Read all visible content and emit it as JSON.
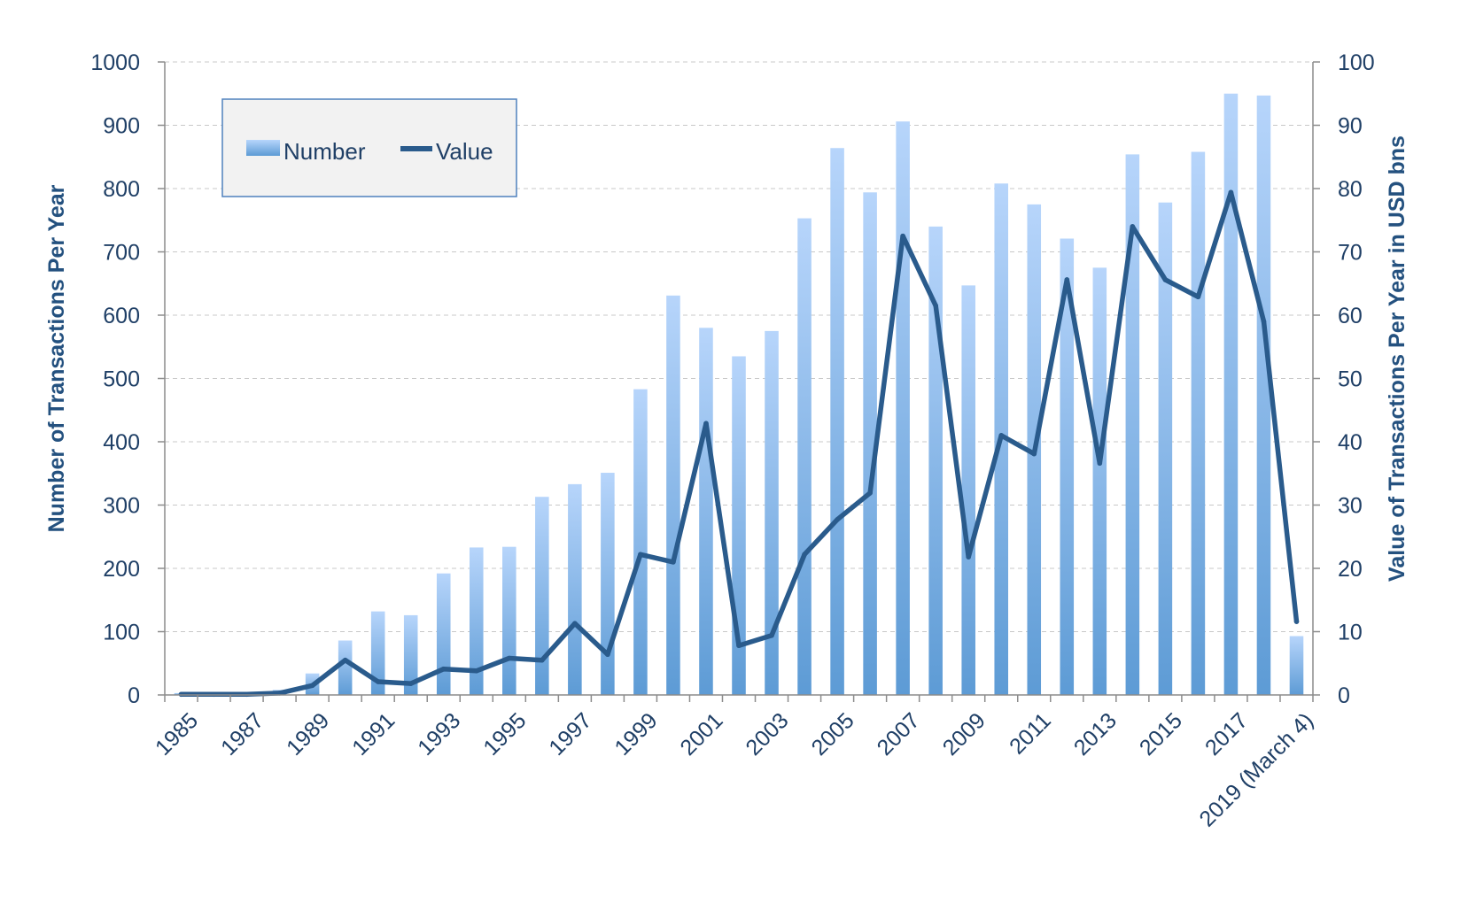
{
  "chart_data": {
    "type": "bar",
    "categories": [
      "1985",
      "1986",
      "1987",
      "1988",
      "1989",
      "1990",
      "1991",
      "1992",
      "1993",
      "1994",
      "1995",
      "1996",
      "1997",
      "1998",
      "1999",
      "2000",
      "2001",
      "2002",
      "2003",
      "2004",
      "2005",
      "2006",
      "2007",
      "2008",
      "2009",
      "2010",
      "2011",
      "2012",
      "2013",
      "2014",
      "2015",
      "2016",
      "2017",
      "2018",
      "2019 (March 4)"
    ],
    "x_tick_labels": [
      "1985",
      "1987",
      "1989",
      "1991",
      "1993",
      "1995",
      "1997",
      "1999",
      "2001",
      "2003",
      "2005",
      "2007",
      "2009",
      "2011",
      "2013",
      "2015",
      "2017",
      "2019 (March 4)"
    ],
    "series": [
      {
        "name": "Number",
        "kind": "bar",
        "axis": "left",
        "values": [
          3,
          2,
          4,
          8,
          34,
          86,
          132,
          126,
          192,
          233,
          234,
          313,
          333,
          351,
          483,
          631,
          580,
          535,
          575,
          753,
          864,
          794,
          906,
          740,
          647,
          808,
          775,
          721,
          675,
          854,
          778,
          858,
          950,
          947,
          93
        ]
      },
      {
        "name": "Value",
        "kind": "line",
        "axis": "right",
        "values": [
          0.1,
          0.1,
          0.1,
          0.3,
          1.5,
          5.5,
          2.1,
          1.8,
          4.1,
          3.8,
          5.8,
          5.5,
          11.3,
          6.4,
          22.2,
          21.0,
          42.9,
          7.8,
          9.4,
          22.2,
          27.7,
          31.9,
          72.5,
          61.5,
          21.8,
          41.0,
          38.1,
          65.6,
          36.6,
          74.0,
          65.6,
          62.9,
          79.4,
          59.0,
          11.6
        ]
      }
    ],
    "ylabel": "Number of Transactions Per Year",
    "y2label": "Value of Transactions Per Year in USD bns",
    "ylim": [
      0,
      1000
    ],
    "y2lim": [
      0,
      100
    ],
    "y_ticks": [
      "0",
      "100",
      "200",
      "300",
      "400",
      "500",
      "600",
      "700",
      "800",
      "900",
      "1000"
    ],
    "y2_ticks": [
      "0",
      "10",
      "20",
      "30",
      "40",
      "50",
      "60",
      "70",
      "80",
      "90",
      "100"
    ],
    "grid": true,
    "legend": {
      "placement": "top-left",
      "entries": [
        "Number",
        "Value"
      ]
    },
    "colors": {
      "bar_top": "#b7d5fb",
      "bar_bottom": "#5d9bd5",
      "line": "#2a5b8c",
      "axis_text": "#1f3f66",
      "legend_bg": "#f2f2f2",
      "legend_border": "#4f81bd"
    }
  }
}
